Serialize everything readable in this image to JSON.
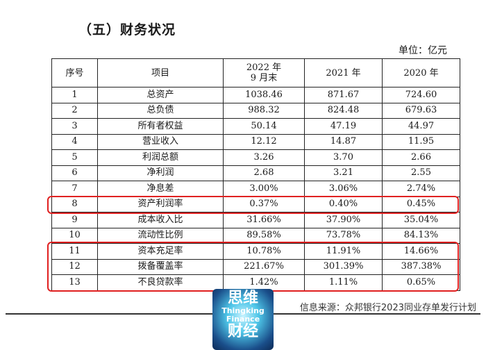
{
  "section_title": "（五）财务状况",
  "unit": "单位：亿元",
  "table": {
    "headers": [
      "序号",
      "项目",
      "2022 年\n9 月末",
      "2021 年",
      "2020 年"
    ],
    "rows": [
      [
        "1",
        "总资产",
        "1038.46",
        "871.67",
        "724.60"
      ],
      [
        "2",
        "总负债",
        "988.32",
        "824.48",
        "679.63"
      ],
      [
        "3",
        "所有者权益",
        "50.14",
        "47.19",
        "44.97"
      ],
      [
        "4",
        "营业收入",
        "12.12",
        "14.87",
        "11.95"
      ],
      [
        "5",
        "利润总额",
        "3.26",
        "3.70",
        "2.66"
      ],
      [
        "6",
        "净利润",
        "2.68",
        "3.21",
        "2.55"
      ],
      [
        "7",
        "净息差",
        "3.00%",
        "3.06%",
        "2.74%"
      ],
      [
        "8",
        "资产利润率",
        "0.37%",
        "0.40%",
        "0.45%"
      ],
      [
        "9",
        "成本收入比",
        "31.66%",
        "37.90%",
        "35.04%"
      ],
      [
        "10",
        "流动性比例",
        "89.58%",
        "73.78%",
        "84.13%"
      ],
      [
        "11",
        "资本充足率",
        "10.78%",
        "11.91%",
        "14.66%"
      ],
      [
        "12",
        "拨备覆盖率",
        "221.67%",
        "301.39%",
        "387.38%"
      ],
      [
        "13",
        "不良贷款率",
        "1.42%",
        "1.11%",
        "0.65%"
      ]
    ]
  },
  "source": "信息来源：众邦银行2023同业存单发行计划",
  "logo": {
    "line1": "思维",
    "line2": "Thingking",
    "line3": "Finance",
    "line4": "财经"
  },
  "colors": {
    "highlight": "#e02020",
    "logo_bg": "#1a4e8a"
  }
}
